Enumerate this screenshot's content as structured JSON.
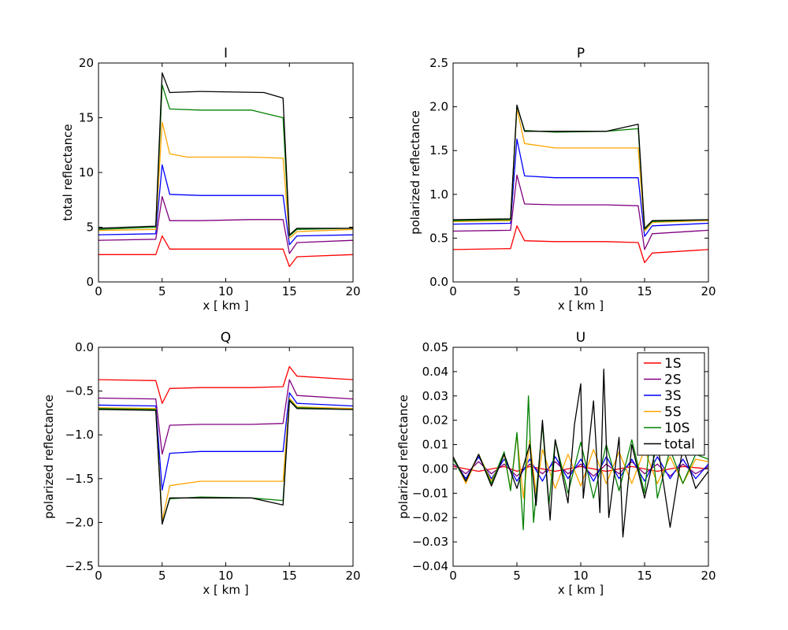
{
  "chart_data": [
    {
      "type": "line",
      "title": "I",
      "xlabel": "x [ km ]",
      "ylabel": "total reflectance",
      "xlim": [
        0,
        20
      ],
      "ylim": [
        0,
        20
      ],
      "xticks": [
        "0",
        "5",
        "10",
        "15",
        "20"
      ],
      "yticks": [
        "0",
        "5",
        "10",
        "15",
        "20"
      ],
      "grid": false,
      "series": [
        {
          "color": "#ff0000",
          "x": [
            0,
            4.5,
            5.0,
            5.6,
            8,
            12,
            14.5,
            15.0,
            15.6,
            20
          ],
          "y": [
            2.5,
            2.5,
            4.2,
            3.0,
            3.0,
            3.0,
            3.0,
            1.4,
            2.3,
            2.5
          ]
        },
        {
          "color": "#800080",
          "x": [
            0,
            4.5,
            5.0,
            5.6,
            8,
            12,
            14.5,
            15.0,
            15.6,
            20
          ],
          "y": [
            3.8,
            3.9,
            7.8,
            5.6,
            5.6,
            5.7,
            5.7,
            2.6,
            3.6,
            3.8
          ]
        },
        {
          "color": "#0000ff",
          "x": [
            0,
            4.5,
            5.0,
            5.6,
            8,
            12,
            14.5,
            15.0,
            15.6,
            20
          ],
          "y": [
            4.3,
            4.4,
            10.7,
            8.0,
            7.9,
            7.9,
            7.9,
            3.4,
            4.2,
            4.3
          ]
        },
        {
          "color": "#ffa500",
          "x": [
            0,
            4.5,
            5.0,
            5.6,
            7,
            12,
            14.5,
            15.0,
            15.6,
            20
          ],
          "y": [
            4.7,
            4.8,
            14.6,
            11.7,
            11.4,
            11.4,
            11.3,
            4.0,
            4.6,
            4.8
          ]
        },
        {
          "color": "#008000",
          "x": [
            0,
            4.5,
            5.0,
            5.6,
            8,
            12,
            14.5,
            15.0,
            15.6,
            20
          ],
          "y": [
            4.8,
            5.0,
            18.0,
            15.8,
            15.7,
            15.7,
            15.0,
            4.2,
            4.8,
            4.9
          ]
        },
        {
          "color": "#000000",
          "x": [
            0,
            4.5,
            5.0,
            5.6,
            8,
            13,
            14.5,
            15.0,
            15.6,
            20
          ],
          "y": [
            4.9,
            5.1,
            19.1,
            17.3,
            17.4,
            17.3,
            16.8,
            4.3,
            4.9,
            4.9
          ]
        }
      ]
    },
    {
      "type": "line",
      "title": "P",
      "xlabel": "x [ km ]",
      "ylabel": "polarized reflectance",
      "xlim": [
        0,
        20
      ],
      "ylim": [
        0,
        2.5
      ],
      "xticks": [
        "0",
        "5",
        "10",
        "15",
        "20"
      ],
      "yticks": [
        "0.0",
        "0.5",
        "1.0",
        "1.5",
        "2.0",
        "2.5"
      ],
      "grid": false,
      "series": [
        {
          "color": "#ff0000",
          "x": [
            0,
            4.5,
            5.0,
            5.6,
            8,
            12,
            14.5,
            15.0,
            15.6,
            20
          ],
          "y": [
            0.37,
            0.38,
            0.64,
            0.47,
            0.46,
            0.46,
            0.45,
            0.22,
            0.33,
            0.37
          ]
        },
        {
          "color": "#800080",
          "x": [
            0,
            4.5,
            5.0,
            5.6,
            8,
            12,
            14.5,
            15.0,
            15.6,
            20
          ],
          "y": [
            0.58,
            0.59,
            1.22,
            0.89,
            0.88,
            0.88,
            0.87,
            0.37,
            0.55,
            0.59
          ]
        },
        {
          "color": "#0000ff",
          "x": [
            0,
            4.5,
            5.0,
            5.6,
            8,
            12,
            14.5,
            15.0,
            15.6,
            20
          ],
          "y": [
            0.66,
            0.67,
            1.63,
            1.21,
            1.19,
            1.19,
            1.19,
            0.52,
            0.64,
            0.67
          ]
        },
        {
          "color": "#ffa500",
          "x": [
            0,
            4.5,
            5.0,
            5.6,
            8,
            12,
            14.5,
            15.0,
            15.6,
            20
          ],
          "y": [
            0.69,
            0.7,
            1.98,
            1.58,
            1.53,
            1.53,
            1.53,
            0.58,
            0.68,
            0.7
          ]
        },
        {
          "color": "#008000",
          "x": [
            0,
            4.5,
            5.0,
            5.6,
            8,
            12,
            14.5,
            15.0,
            15.6,
            20
          ],
          "y": [
            0.7,
            0.71,
            2.01,
            1.73,
            1.71,
            1.72,
            1.75,
            0.6,
            0.69,
            0.71
          ]
        },
        {
          "color": "#000000",
          "x": [
            0,
            4.5,
            5.0,
            5.6,
            8,
            12,
            14.5,
            15.0,
            15.6,
            20
          ],
          "y": [
            0.71,
            0.72,
            2.02,
            1.72,
            1.72,
            1.72,
            1.8,
            0.61,
            0.7,
            0.71
          ]
        }
      ]
    },
    {
      "type": "line",
      "title": "Q",
      "xlabel": "x [ km ]",
      "ylabel": "polarized reflectance",
      "xlim": [
        0,
        20
      ],
      "ylim": [
        -2.5,
        0
      ],
      "xticks": [
        "0",
        "5",
        "10",
        "15",
        "20"
      ],
      "yticks": [
        "−2.5",
        "−2.0",
        "−1.5",
        "−1.0",
        "−0.5",
        "0.0"
      ],
      "grid": false,
      "series": [
        {
          "color": "#ff0000",
          "x": [
            0,
            4.5,
            5.0,
            5.6,
            8,
            12,
            14.5,
            15.0,
            15.6,
            20
          ],
          "y": [
            -0.37,
            -0.38,
            -0.64,
            -0.47,
            -0.46,
            -0.46,
            -0.45,
            -0.22,
            -0.33,
            -0.37
          ]
        },
        {
          "color": "#800080",
          "x": [
            0,
            4.5,
            5.0,
            5.6,
            8,
            12,
            14.5,
            15.0,
            15.6,
            20
          ],
          "y": [
            -0.58,
            -0.59,
            -1.22,
            -0.89,
            -0.88,
            -0.88,
            -0.87,
            -0.37,
            -0.55,
            -0.59
          ]
        },
        {
          "color": "#0000ff",
          "x": [
            0,
            4.5,
            5.0,
            5.6,
            8,
            12,
            14.5,
            15.0,
            15.6,
            20
          ],
          "y": [
            -0.66,
            -0.67,
            -1.63,
            -1.21,
            -1.19,
            -1.19,
            -1.19,
            -0.52,
            -0.64,
            -0.67
          ]
        },
        {
          "color": "#ffa500",
          "x": [
            0,
            4.5,
            5.0,
            5.6,
            8,
            12,
            14.5,
            15.0,
            15.6,
            20
          ],
          "y": [
            -0.69,
            -0.7,
            -1.98,
            -1.58,
            -1.53,
            -1.53,
            -1.53,
            -0.58,
            -0.68,
            -0.7
          ]
        },
        {
          "color": "#008000",
          "x": [
            0,
            4.5,
            5.0,
            5.6,
            8,
            12,
            14.5,
            15.0,
            15.6,
            20
          ],
          "y": [
            -0.7,
            -0.71,
            -2.01,
            -1.73,
            -1.71,
            -1.72,
            -1.75,
            -0.6,
            -0.69,
            -0.71
          ]
        },
        {
          "color": "#000000",
          "x": [
            0,
            4.5,
            5.0,
            5.6,
            8,
            12,
            14.5,
            15.0,
            15.6,
            20
          ],
          "y": [
            -0.71,
            -0.72,
            -2.02,
            -1.72,
            -1.72,
            -1.72,
            -1.8,
            -0.61,
            -0.7,
            -0.71
          ]
        }
      ]
    },
    {
      "type": "line",
      "title": "U",
      "xlabel": "x [ km ]",
      "ylabel": "polarized reflectance",
      "xlim": [
        0,
        20
      ],
      "ylim": [
        -0.04,
        0.05
      ],
      "xticks": [
        "0",
        "5",
        "10",
        "15",
        "20"
      ],
      "yticks": [
        "−0.04",
        "−0.03",
        "−0.02",
        "−0.01",
        "0.00",
        "0.01",
        "0.02",
        "0.03",
        "0.04",
        "0.05"
      ],
      "grid": false,
      "legend": {
        "placement": "top-right",
        "entries": [
          "1S",
          "2S",
          "3S",
          "5S",
          "10S",
          "total"
        ]
      },
      "series": [
        {
          "name": "1S",
          "color": "#ff0000",
          "x": [
            0,
            2,
            4,
            5,
            6,
            8,
            10,
            12,
            14,
            15,
            16,
            18,
            20
          ],
          "y": [
            0.001,
            -0.001,
            0.001,
            -0.001,
            0.001,
            -0.001,
            0.001,
            -0.001,
            0.001,
            0.0,
            -0.001,
            0.001,
            0.0
          ]
        },
        {
          "name": "2S",
          "color": "#800080",
          "x": [
            0,
            1,
            2,
            3,
            4,
            5,
            6,
            7,
            8,
            9,
            10,
            11,
            12,
            13,
            14,
            15,
            16,
            17,
            18,
            19,
            20
          ],
          "y": [
            0.002,
            -0.002,
            0.003,
            -0.002,
            0.002,
            -0.003,
            0.002,
            -0.002,
            0.003,
            -0.002,
            0.002,
            -0.003,
            0.002,
            -0.002,
            0.003,
            -0.002,
            0.002,
            -0.003,
            0.002,
            -0.002,
            0.001
          ]
        },
        {
          "name": "3S",
          "color": "#0000ff",
          "x": [
            0,
            1,
            2,
            3,
            4,
            5,
            6,
            7,
            8,
            9,
            10,
            11,
            12,
            13,
            14,
            15,
            16,
            17,
            18,
            19,
            20
          ],
          "y": [
            0.004,
            -0.004,
            0.005,
            -0.004,
            0.004,
            -0.005,
            0.004,
            -0.005,
            0.005,
            -0.004,
            0.004,
            -0.005,
            0.005,
            -0.004,
            0.004,
            -0.005,
            0.005,
            -0.004,
            0.004,
            -0.004,
            0.002
          ]
        },
        {
          "name": "5S",
          "color": "#ffa500",
          "x": [
            0,
            1,
            2,
            3,
            4,
            4.5,
            5,
            5.5,
            6,
            6.5,
            7,
            8,
            9,
            10,
            11,
            12,
            13,
            14,
            15,
            16,
            17,
            18,
            19,
            20
          ],
          "y": [
            0.005,
            -0.006,
            0.006,
            -0.005,
            0.006,
            -0.008,
            0.014,
            -0.012,
            0.012,
            -0.01,
            0.008,
            -0.008,
            0.006,
            -0.007,
            0.008,
            -0.006,
            0.007,
            -0.006,
            0.008,
            -0.006,
            0.005,
            -0.006,
            0.004,
            0.003
          ]
        },
        {
          "name": "10S",
          "color": "#008000",
          "x": [
            0,
            1,
            2,
            3,
            4,
            4.5,
            5,
            5.5,
            5.9,
            6.3,
            7,
            7.5,
            8,
            9,
            10,
            11,
            12,
            13,
            14,
            15,
            15.5,
            16,
            17,
            18,
            19,
            20
          ],
          "y": [
            0.004,
            -0.005,
            0.006,
            -0.006,
            0.007,
            -0.009,
            0.015,
            -0.025,
            0.03,
            -0.022,
            0.018,
            -0.015,
            0.012,
            -0.01,
            0.011,
            -0.012,
            0.01,
            -0.009,
            0.012,
            -0.01,
            0.016,
            -0.012,
            0.008,
            -0.006,
            0.006,
            0.004
          ]
        },
        {
          "name": "total",
          "color": "#000000",
          "x": [
            0,
            1,
            2,
            3,
            4,
            5,
            6,
            6.5,
            7,
            7.6,
            8,
            9,
            9.5,
            10,
            10.2,
            11,
            11.5,
            11.8,
            12.2,
            13,
            13.3,
            14,
            15,
            16,
            17,
            18,
            19,
            20
          ],
          "y": [
            0.005,
            -0.005,
            0.006,
            -0.007,
            0.006,
            -0.008,
            0.01,
            -0.015,
            0.02,
            -0.021,
            0.012,
            -0.014,
            0.018,
            0.035,
            -0.012,
            0.028,
            -0.018,
            0.041,
            -0.02,
            0.013,
            -0.028,
            0.01,
            -0.012,
            0.011,
            -0.024,
            0.009,
            -0.008,
            -0.001
          ]
        }
      ]
    }
  ]
}
